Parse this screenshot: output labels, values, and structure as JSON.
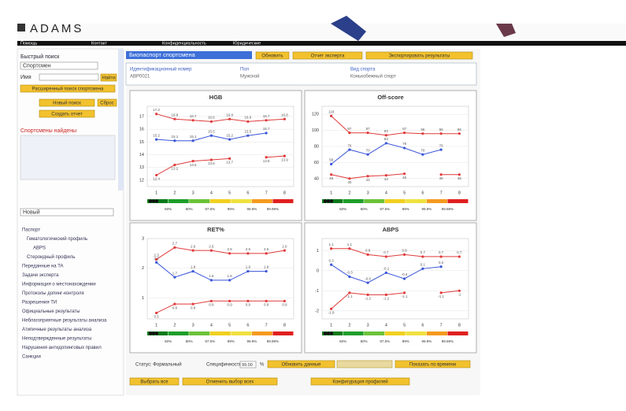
{
  "header": {
    "logo": "ADAMS",
    "menu": [
      "Помощь",
      "Контакт",
      "Конфиденциальность",
      "Юридические"
    ]
  },
  "sidebar": {
    "title": "Быстрый поиск",
    "select": "Спортсмен",
    "field": "Имя",
    "search": "Найти",
    "links": [
      "Расширенный поиск спортсмена",
      "Новый поиск",
      "Сброс",
      "Создать отчет"
    ],
    "section": "Спортсмены найдены",
    "group": "Новый",
    "tree": [
      "Паспорт",
      "Гематологический профиль",
      "ABPS",
      "Стероидный профиль",
      "Переданные на TA",
      "Задачи эксперта",
      "Информация о местонахождении",
      "Протоколы допинг-контроля",
      "Разрешения ТИ",
      "Официальные результаты",
      "Неблагоприятные результаты анализа",
      "Атипичные результаты анализа",
      "Неподтвержденные результаты",
      "Нарушения антидопинговых правил",
      "Санкции"
    ]
  },
  "toolbar": {
    "title": "Биопаспорт спортсмена",
    "buttons": [
      "Обновить",
      "Отчет эксперта",
      "Экспортировать результаты"
    ]
  },
  "info": {
    "labels": [
      "Идентификационный номер",
      "Пол",
      "Вид спорта"
    ],
    "values": [
      "ABP0021",
      "Мужской",
      "Конькобежный спорт"
    ]
  },
  "charts": [
    {
      "type": "line",
      "title": "HGB",
      "categories": [
        1,
        2,
        3,
        4,
        5,
        6,
        7,
        8
      ],
      "ylim": [
        11.5,
        17.8
      ],
      "yticks": [
        12,
        13,
        14,
        15,
        16,
        17
      ],
      "series": [
        {
          "color": "#e03a3a",
          "values": [
            17.2,
            16.8,
            16.7,
            16.6,
            16.8,
            16.6,
            16.7,
            16.8
          ]
        },
        {
          "color": "#3a55d8",
          "values": [
            15.2,
            15.1,
            15.1,
            15.5,
            15.2,
            15.5,
            15.7,
            null
          ]
        },
        {
          "color": "#e03a3a",
          "values": [
            12.4,
            13.2,
            13.5,
            13.6,
            13.7,
            null,
            13.8,
            13.9
          ]
        }
      ],
      "scale_labels": [
        "60%",
        "80%",
        "97.5%",
        "99%",
        "99.9%",
        "99.99%"
      ]
    },
    {
      "type": "line",
      "title": "Off-score",
      "categories": [
        1,
        2,
        3,
        4,
        5,
        6,
        7,
        8
      ],
      "ylim": [
        30,
        130
      ],
      "yticks": [
        40,
        60,
        80,
        100,
        120
      ],
      "series": [
        {
          "color": "#e03a3a",
          "values": [
            118,
            97,
            97,
            94,
            97,
            96,
            96,
            96
          ]
        },
        {
          "color": "#3a55d8",
          "values": [
            58,
            76,
            70,
            84,
            78,
            70,
            76,
            null
          ]
        },
        {
          "color": "#e03a3a",
          "values": [
            45,
            40,
            43,
            44,
            46,
            null,
            45,
            45
          ]
        }
      ],
      "scale_labels": [
        "60%",
        "80%",
        "97.5%",
        "99%",
        "99.9%",
        "99.99%"
      ]
    },
    {
      "type": "line",
      "title": "RET%",
      "categories": [
        1,
        2,
        3,
        4,
        5,
        6,
        7,
        8
      ],
      "ylim": [
        0.3,
        3.0
      ],
      "yticks": [
        1,
        2,
        3
      ],
      "series": [
        {
          "color": "#e03a3a",
          "values": [
            2.3,
            2.7,
            2.6,
            2.6,
            2.5,
            2.5,
            2.5,
            2.6
          ]
        },
        {
          "color": "#3a55d8",
          "values": [
            2.2,
            1.7,
            1.9,
            1.6,
            1.6,
            1.9,
            1.9,
            null
          ]
        },
        {
          "color": "#e03a3a",
          "values": [
            0.5,
            0.8,
            0.8,
            0.9,
            0.9,
            0.9,
            0.9,
            0.9
          ]
        }
      ],
      "scale_labels": [
        "60%",
        "80%",
        "97.5%",
        "99%",
        "99.9%",
        "99.99%"
      ]
    },
    {
      "type": "line",
      "title": "ABPS",
      "categories": [
        1,
        2,
        3,
        4,
        5,
        6,
        7,
        8
      ],
      "ylim": [
        -2.4,
        1.6
      ],
      "yticks": [
        -2,
        -1,
        0,
        1
      ],
      "series": [
        {
          "color": "#e03a3a",
          "values": [
            1.1,
            1.1,
            0.8,
            0.7,
            0.8,
            0.7,
            0.7,
            0.7
          ]
        },
        {
          "color": "#3a55d8",
          "values": [
            0.3,
            -0.3,
            -0.6,
            -0.1,
            -0.4,
            0.1,
            0.2,
            null
          ]
        },
        {
          "color": "#e03a3a",
          "values": [
            -1.9,
            -1.1,
            -1.2,
            -1.2,
            -1.1,
            null,
            -1.1,
            -1.0
          ]
        }
      ],
      "scale_labels": [
        "60%",
        "80%",
        "97.5%",
        "99%",
        "99.9%",
        "99.99%"
      ]
    }
  ],
  "footer": {
    "status": "Статус: Формальный",
    "scale_label": "Специфичность",
    "scale_value": "99.00",
    "unit": "%",
    "buttons": [
      "Обновить данные",
      "Показать по времени",
      "Выбрать все",
      "Отменить выбор всех",
      "Конфигурация профилей"
    ]
  }
}
